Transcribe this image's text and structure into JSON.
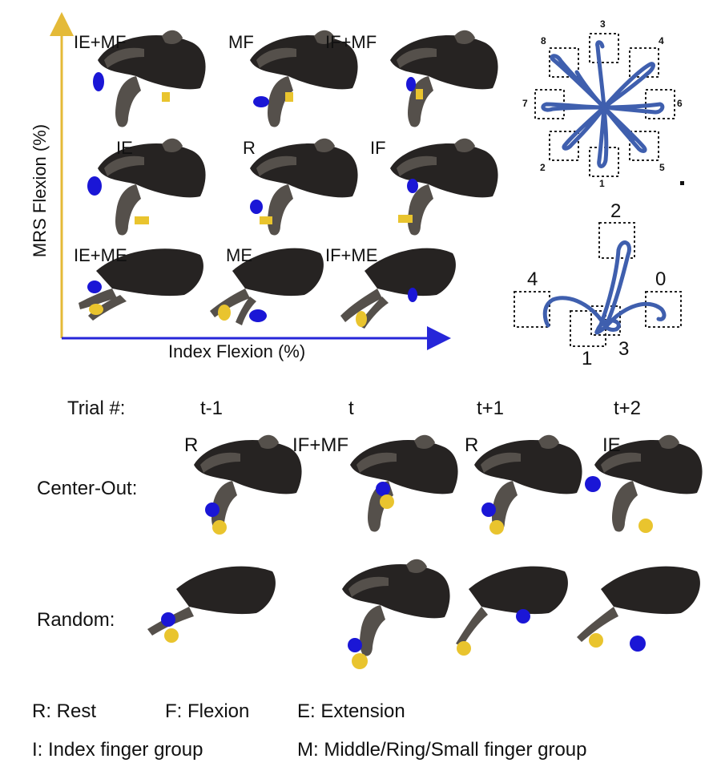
{
  "colors": {
    "hand": "#55504b",
    "hand_dark": "#262322",
    "index_tip": "#1a16d6",
    "mrs_tip": "#e9c42e",
    "trajectory": "#3f5fae",
    "x_axis": "#2626d9",
    "y_axis": "#e4ba38"
  },
  "grid": {
    "x_axis_label": "Index Flexion (%)",
    "y_axis_label": "MRS Flexion (%)",
    "cells": [
      {
        "label": "IE+MF"
      },
      {
        "label": "MF"
      },
      {
        "label": "IF+MF"
      },
      {
        "label": "IE"
      },
      {
        "label": "R"
      },
      {
        "label": "IF"
      },
      {
        "label": "IE+ME"
      },
      {
        "label": "ME"
      },
      {
        "label": "IF+ME"
      }
    ]
  },
  "center_out_map": {
    "targets": [
      "1",
      "2",
      "3",
      "4",
      "5",
      "6",
      "7",
      "8"
    ]
  },
  "random_map": {
    "targets": [
      "0",
      "1",
      "2",
      "3",
      "4"
    ]
  },
  "trials": {
    "header_label": "Trial #:",
    "columns": [
      "t-1",
      "t",
      "t+1",
      "t+2"
    ],
    "rows": [
      {
        "label": "Center-Out:",
        "postures": [
          "R",
          "IF+MF",
          "R",
          "IE"
        ]
      },
      {
        "label": "Random:",
        "postures": [
          "",
          "",
          "",
          ""
        ]
      }
    ]
  },
  "legend": {
    "rest": "R: Rest",
    "flexion": "F: Flexion",
    "extension": "E: Extension",
    "index_group": "I: Index finger group",
    "mrs_group": "M: Middle/Ring/Small finger group"
  }
}
